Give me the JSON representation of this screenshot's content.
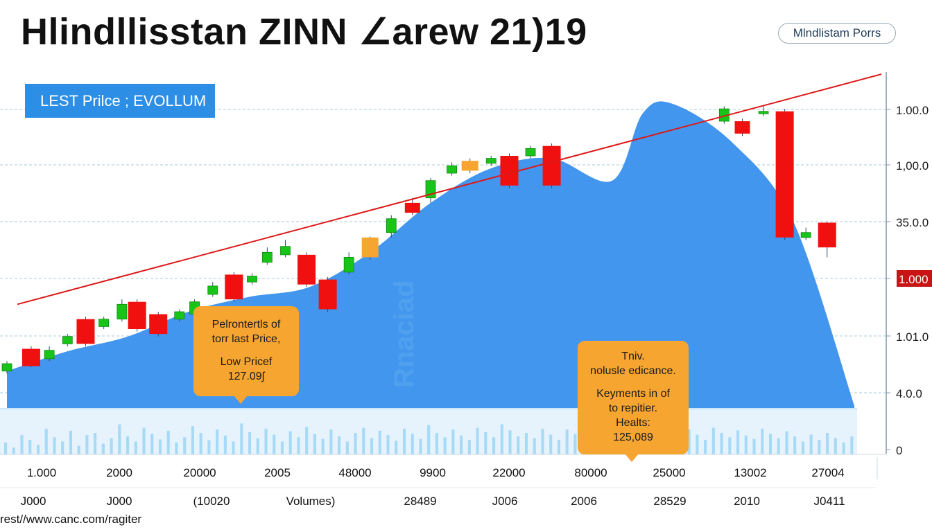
{
  "title": "Hlindllisstan ZINN ∠arew 21)19",
  "source_pill": "Mlndlistam Porrs",
  "footer_url": "rest//www.canc.com/ragiter",
  "chart_data": {
    "type": "candlestick",
    "title": "Hlindllisstan ZINN ∠arew 21)19",
    "legend": "LEST Prilce ; EVOLLUM",
    "watermark": "Rnaciad",
    "y_tick_labels": [
      "1.00.0",
      "1,00.0",
      "35.0.0",
      "1.000",
      "1.01.0",
      "4.0.0",
      "0"
    ],
    "y_highlight_label": "1.000",
    "x_tick_labels_row1": [
      "1.000",
      "2000",
      "20000",
      "2005",
      "48000",
      "9900",
      "22000",
      "80000",
      "25000",
      "13002",
      "27004"
    ],
    "x_tick_labels_row2": [
      "J000",
      "J000",
      "(10020",
      "Volumes)",
      "28489",
      "J006",
      "2006",
      "28529",
      "2010",
      "J0411"
    ],
    "colors": {
      "up": "#19c419",
      "down": "#f01010",
      "neutral": "#f6a531",
      "area": "#3d93ec",
      "trendline": "#dd1818",
      "volume": "#9bd5f5",
      "grid": "#a9c8d9",
      "axis": "#7f97ab"
    },
    "y_range": [
      0,
      7
    ],
    "candles": [
      {
        "x": 0.0,
        "open": 0.9,
        "close": 1.05,
        "high": 1.1,
        "low": 0.85,
        "color": "up"
      },
      {
        "x": 0.4,
        "open": 1.0,
        "close": 1.35,
        "high": 1.4,
        "low": 0.98,
        "color": "down"
      },
      {
        "x": 0.7,
        "open": 1.15,
        "close": 1.32,
        "high": 1.4,
        "low": 1.1,
        "color": "up"
      },
      {
        "x": 1.0,
        "open": 1.45,
        "close": 1.6,
        "high": 1.65,
        "low": 1.4,
        "color": "up"
      },
      {
        "x": 1.3,
        "open": 1.45,
        "close": 1.95,
        "high": 2.0,
        "low": 1.4,
        "color": "down"
      },
      {
        "x": 1.6,
        "open": 1.8,
        "close": 1.95,
        "high": 2.0,
        "low": 1.75,
        "color": "up"
      },
      {
        "x": 1.9,
        "open": 1.95,
        "close": 2.25,
        "high": 2.35,
        "low": 1.9,
        "color": "up"
      },
      {
        "x": 2.15,
        "open": 1.75,
        "close": 2.3,
        "high": 2.35,
        "low": 1.7,
        "color": "down"
      },
      {
        "x": 2.5,
        "open": 1.65,
        "close": 2.05,
        "high": 2.1,
        "low": 1.6,
        "color": "down"
      },
      {
        "x": 2.85,
        "open": 1.95,
        "close": 2.1,
        "high": 2.15,
        "low": 1.9,
        "color": "up"
      },
      {
        "x": 3.1,
        "open": 2.05,
        "close": 2.3,
        "high": 2.35,
        "low": 2.0,
        "color": "up"
      },
      {
        "x": 3.4,
        "open": 2.45,
        "close": 2.62,
        "high": 2.7,
        "low": 2.4,
        "color": "up"
      },
      {
        "x": 3.75,
        "open": 2.35,
        "close": 2.85,
        "high": 2.9,
        "low": 2.3,
        "color": "down"
      },
      {
        "x": 4.05,
        "open": 2.7,
        "close": 2.82,
        "high": 2.88,
        "low": 2.65,
        "color": "up"
      },
      {
        "x": 4.3,
        "open": 3.1,
        "close": 3.3,
        "high": 3.4,
        "low": 3.05,
        "color": "up"
      },
      {
        "x": 4.6,
        "open": 3.25,
        "close": 3.42,
        "high": 3.55,
        "low": 3.2,
        "color": "up"
      },
      {
        "x": 4.95,
        "open": 2.65,
        "close": 3.25,
        "high": 3.3,
        "low": 2.6,
        "color": "down"
      },
      {
        "x": 5.3,
        "open": 2.15,
        "close": 2.75,
        "high": 2.8,
        "low": 2.1,
        "color": "down"
      },
      {
        "x": 5.65,
        "open": 2.9,
        "close": 3.2,
        "high": 3.3,
        "low": 2.85,
        "color": "up"
      },
      {
        "x": 6.0,
        "open": 3.2,
        "close": 3.6,
        "high": 3.62,
        "low": 3.15,
        "color": "neutral"
      },
      {
        "x": 6.35,
        "open": 3.7,
        "close": 3.98,
        "high": 4.05,
        "low": 3.6,
        "color": "up"
      },
      {
        "x": 6.7,
        "open": 4.1,
        "close": 4.3,
        "high": 4.4,
        "low": 4.05,
        "color": "down"
      },
      {
        "x": 7.0,
        "open": 4.4,
        "close": 4.75,
        "high": 4.8,
        "low": 4.3,
        "color": "up"
      },
      {
        "x": 7.35,
        "open": 4.9,
        "close": 5.05,
        "high": 5.12,
        "low": 4.85,
        "color": "up"
      },
      {
        "x": 7.65,
        "open": 4.95,
        "close": 5.15,
        "high": 5.2,
        "low": 4.9,
        "color": "neutral"
      },
      {
        "x": 8.0,
        "open": 5.1,
        "close": 5.2,
        "high": 5.25,
        "low": 5.05,
        "color": "up"
      },
      {
        "x": 8.3,
        "open": 4.65,
        "close": 5.25,
        "high": 5.3,
        "low": 4.6,
        "color": "down"
      },
      {
        "x": 8.65,
        "open": 5.25,
        "close": 5.4,
        "high": 5.45,
        "low": 5.2,
        "color": "up"
      },
      {
        "x": 9.0,
        "open": 4.65,
        "close": 5.45,
        "high": 5.5,
        "low": 4.6,
        "color": "down"
      },
      {
        "x": 11.85,
        "open": 5.95,
        "close": 6.2,
        "high": 6.25,
        "low": 5.9,
        "color": "up"
      },
      {
        "x": 12.15,
        "open": 5.7,
        "close": 5.95,
        "high": 6.0,
        "low": 5.65,
        "color": "down"
      },
      {
        "x": 12.5,
        "open": 6.1,
        "close": 6.15,
        "high": 6.25,
        "low": 6.05,
        "color": "up"
      },
      {
        "x": 12.85,
        "open": 3.6,
        "close": 6.15,
        "high": 6.2,
        "low": 3.55,
        "color": "down"
      },
      {
        "x": 13.2,
        "open": 3.6,
        "close": 3.7,
        "high": 3.8,
        "low": 3.55,
        "color": "up"
      },
      {
        "x": 13.55,
        "open": 3.4,
        "close": 3.9,
        "high": 3.92,
        "low": 3.2,
        "color": "down"
      }
    ],
    "area_series": {
      "x": [
        0,
        1,
        2,
        3,
        4,
        5,
        6,
        7,
        8,
        9,
        10,
        10.5,
        11,
        12,
        13,
        14
      ],
      "y": [
        0.9,
        1.3,
        1.6,
        2.1,
        2.4,
        2.6,
        3.3,
        4.3,
        5.0,
        5.2,
        4.75,
        6.1,
        6.3,
        5.5,
        3.9,
        0.2
      ]
    },
    "trendline": {
      "x": [
        0.3,
        15.0
      ],
      "y": [
        2.25,
        6.9
      ]
    },
    "volume_bars": [
      0.28,
      0.16,
      0.45,
      0.34,
      0.22,
      0.6,
      0.4,
      0.3,
      0.55,
      0.2,
      0.45,
      0.5,
      0.25,
      0.38,
      0.7,
      0.42,
      0.3,
      0.62,
      0.48,
      0.35,
      0.55,
      0.28,
      0.4,
      0.66,
      0.5,
      0.33,
      0.58,
      0.44,
      0.3,
      0.72,
      0.52,
      0.38,
      0.6,
      0.46,
      0.3,
      0.54,
      0.4,
      0.64,
      0.48,
      0.36,
      0.58,
      0.42,
      0.3,
      0.5,
      0.62,
      0.38,
      0.55,
      0.45,
      0.32,
      0.6,
      0.48,
      0.36,
      0.68,
      0.5,
      0.4,
      0.58,
      0.44,
      0.34,
      0.62,
      0.52,
      0.4,
      0.7,
      0.56,
      0.42,
      0.5,
      0.38,
      0.6,
      0.46,
      0.34,
      0.58,
      0.48,
      0.36,
      0.64,
      0.5,
      0.4,
      0.56,
      0.44,
      0.32,
      0.6,
      0.5,
      0.38,
      0.66,
      0.52,
      0.4,
      0.58,
      0.46,
      0.34,
      0.62,
      0.5,
      0.4,
      0.56,
      0.44,
      0.36,
      0.6,
      0.48,
      0.38,
      0.54,
      0.42,
      0.3,
      0.46,
      0.34,
      0.5,
      0.38,
      0.28,
      0.42
    ]
  },
  "callouts": {
    "left": {
      "line1": "Pelrontertls of",
      "line2": "torr last Price,",
      "line3": "Low Pricef",
      "line4": "127.09ʃ"
    },
    "right": {
      "line1": "Tniv.",
      "line2": "nolusle edicance.",
      "line3": "Keyments in of",
      "line4": "to repitier.",
      "line5": "Healts:",
      "line6": "125,089"
    }
  }
}
